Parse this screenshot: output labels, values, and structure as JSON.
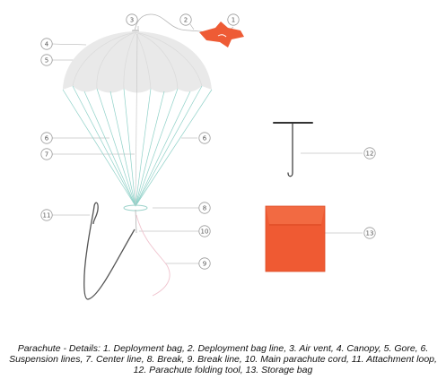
{
  "callouts": [
    {
      "num": "1",
      "label": "Deployment bag"
    },
    {
      "num": "2",
      "label": "Deployment bag line"
    },
    {
      "num": "3",
      "label": "Air vent"
    },
    {
      "num": "4",
      "label": "Canopy"
    },
    {
      "num": "5",
      "label": "Gore"
    },
    {
      "num": "6",
      "label": "Suspension lines"
    },
    {
      "num": "7",
      "label": "Center line"
    },
    {
      "num": "8",
      "label": "Break"
    },
    {
      "num": "9",
      "label": "Break line"
    },
    {
      "num": "10",
      "label": "Main parachute cord"
    },
    {
      "num": "11",
      "label": "Attachment loop"
    },
    {
      "num": "12",
      "label": "Parachute folding tool"
    },
    {
      "num": "13",
      "label": "Storage bag"
    }
  ],
  "caption": "Parachute - Details: 1. Deployment bag, 2. Deployment bag line, 3. Air vent, 4. Canopy, 5. Gore, 6. Suspension lines, 7. Center line, 8. Break, 9. Break line, 10. Main parachute cord, 11. Attachment loop, 12. Parachute folding tool, 13. Storage bag",
  "colors": {
    "canopy": "#e9e9e9",
    "suspension_lines": "#8fd1c8",
    "deployment_bag": "#ee5b35",
    "storage_bag": "#ef5a33",
    "folding_tool": "#333333",
    "attachment_loop": "#555555",
    "break_line": "#f0c4cf",
    "callout_stroke": "#9a9a9a"
  }
}
